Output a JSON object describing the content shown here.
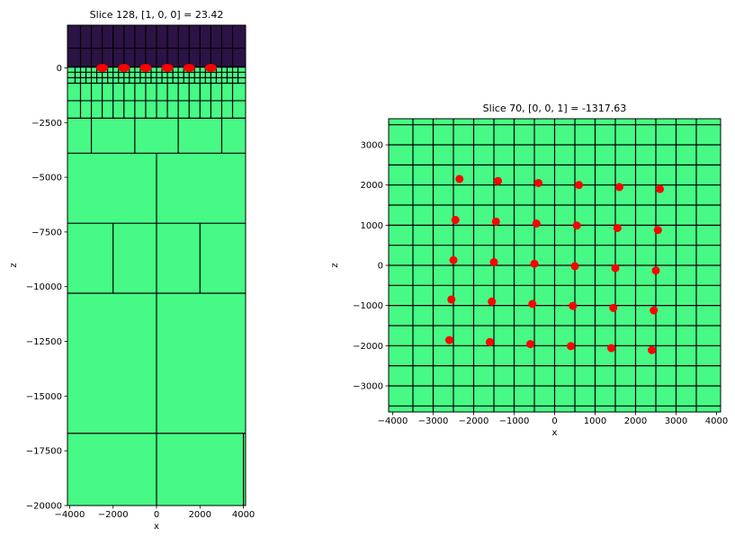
{
  "colors": {
    "fill_low": "#2c1345",
    "fill_high": "#46fa85",
    "grid": "#000000",
    "marker": "#ff0000"
  },
  "chart_data": [
    {
      "type": "heatmap",
      "title": "Slice 128, [1, 0, 0] = 23.42",
      "xlabel": "x",
      "ylabel": "z",
      "xlim": [
        -4100,
        4100
      ],
      "ylim": [
        -20000,
        1950
      ],
      "xticks": [
        -4000,
        -2000,
        0,
        2000,
        4000
      ],
      "xtick_labels": [
        "−4000",
        "−2000",
        "0",
        "2000",
        "4000"
      ],
      "yticks": [
        0,
        -2500,
        -5000,
        -7500,
        -10000,
        -12500,
        -15000,
        -17500,
        -20000
      ],
      "ytick_labels": [
        "0",
        "−2500",
        "−5000",
        "−7500",
        "−10000",
        "−12500",
        "−15000",
        "−17500",
        "−20000"
      ],
      "regions": [
        {
          "z_range": [
            0,
            1950
          ],
          "value": "low",
          "color": "#2c1345"
        },
        {
          "z_range": [
            -20000,
            0
          ],
          "value": "high",
          "color": "#46fa85"
        }
      ],
      "mesh_x_lines": {
        "-20000,-16700": [
          0,
          4000
        ],
        "-16700,-10300": [
          0
        ],
        "-10300,-7100": [
          -2000,
          0,
          2000
        ],
        "-7100,-3900": [
          0
        ],
        "-3900,-2300": [
          -3000,
          -1000,
          1000,
          3000
        ],
        "-2300,-1500": [
          -3500,
          -3000,
          -2500,
          -2000,
          -1500,
          -1000,
          -500,
          0,
          500,
          1000,
          1500,
          2000,
          2500,
          3000,
          3500
        ],
        "-1500,-700": [
          -3500,
          -3000,
          -2500,
          -2000,
          -1500,
          -1000,
          -500,
          0,
          500,
          1000,
          1500,
          2000,
          2500,
          3000,
          3500
        ],
        "-700,1950": "fine"
      },
      "mesh_z_lines": [
        -16700,
        -10300,
        -7100,
        -3900,
        -2300,
        -1500,
        -700,
        -450,
        -200,
        50,
        900
      ],
      "series": [
        {
          "type": "scatter",
          "x": [
            -2500,
            -1500,
            -500,
            500,
            1500,
            2500
          ],
          "y": [
            0,
            0,
            0,
            0,
            0,
            0
          ],
          "color": "#ff0000"
        }
      ]
    },
    {
      "type": "heatmap",
      "title": "Slice 70, [0, 0, 1] = -1317.63",
      "xlabel": "x",
      "ylabel": "z",
      "xlim": [
        -4100,
        4100
      ],
      "ylim": [
        -3650,
        3650
      ],
      "xticks": [
        -4000,
        -3000,
        -2000,
        -1000,
        0,
        1000,
        2000,
        3000,
        4000
      ],
      "xtick_labels": [
        "−4000",
        "−3000",
        "−2000",
        "−1000",
        "0",
        "1000",
        "2000",
        "3000",
        "4000"
      ],
      "yticks": [
        3000,
        2000,
        1000,
        0,
        -1000,
        -2000,
        -3000
      ],
      "ytick_labels": [
        "3000",
        "2000",
        "1000",
        "0",
        "−1000",
        "−2000",
        "−3000"
      ],
      "regions": [
        {
          "z_range": [
            -3650,
            3650
          ],
          "value": "high",
          "color": "#46fa85"
        }
      ],
      "mesh_step": 500,
      "series": [
        {
          "type": "scatter",
          "color": "#ff0000",
          "x": [
            -2350,
            -1400,
            -400,
            600,
            1600,
            2600,
            -2450,
            -1450,
            -450,
            550,
            1550,
            2550,
            -2500,
            -1500,
            -500,
            500,
            1500,
            2500,
            -2550,
            -1550,
            -550,
            450,
            1450,
            2450,
            -2600,
            -1600,
            -600,
            400,
            1400,
            2400
          ],
          "y": [
            2150,
            2100,
            2050,
            2000,
            1950,
            1900,
            1130,
            1090,
            1040,
            990,
            930,
            880,
            130,
            80,
            40,
            -20,
            -70,
            -130,
            -850,
            -900,
            -960,
            -1010,
            -1060,
            -1120,
            -1860,
            -1910,
            -1960,
            -2010,
            -2060,
            -2110
          ]
        }
      ]
    }
  ]
}
